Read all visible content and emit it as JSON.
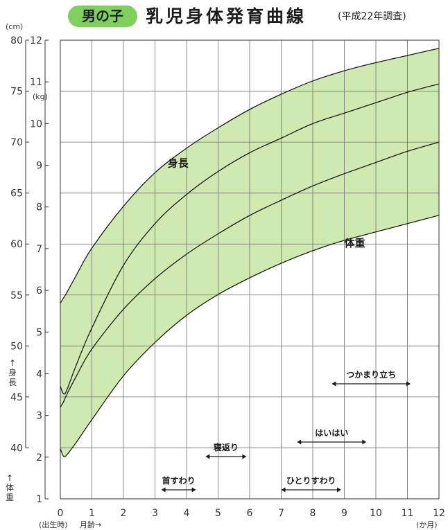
{
  "header": {
    "badge": "男の子",
    "title": "乳児身体発育曲線",
    "survey": "(平成22年調査)"
  },
  "chart_data": {
    "type": "area",
    "title": "乳児身体発育曲線",
    "x": [
      0,
      0.1,
      0.2,
      0.5,
      1,
      2,
      3,
      4,
      5,
      6,
      7,
      8,
      9,
      10,
      11,
      12
    ],
    "xlim": [
      0,
      12
    ],
    "x_ticks": [
      "0",
      "1",
      "2",
      "3",
      "4",
      "5",
      "6",
      "7",
      "8",
      "9",
      "10",
      "11",
      "12"
    ],
    "x_label_left": "(出生時)",
    "x_label": "月齢→",
    "x_unit": "(か月)",
    "y_left": {
      "unit": "(cm)",
      "label": "↑身長",
      "ylim": [
        35,
        80
      ],
      "ticks": [
        "40",
        "45",
        "50",
        "55",
        "60",
        "65",
        "70",
        "75",
        "80"
      ]
    },
    "y_right": {
      "unit": "(kg)",
      "label": "↑体重",
      "ylim": [
        1,
        12
      ],
      "ticks": [
        "1",
        "2",
        "3",
        "4",
        "5",
        "6",
        "7",
        "8",
        "9",
        "10",
        "11",
        "12"
      ]
    },
    "grid": true,
    "band_color": "#cfeab0",
    "series": [
      {
        "name": "身長",
        "axis": "left",
        "upper": [
          54.2,
          54.7,
          55.2,
          56.9,
          59.6,
          63.7,
          67.0,
          69.4,
          71.4,
          73.2,
          74.7,
          76.0,
          77.0,
          77.8,
          78.5,
          79.2
        ],
        "lower": [
          44.0,
          44.5,
          45.2,
          47.0,
          49.7,
          53.6,
          56.6,
          59.0,
          61.0,
          62.8,
          64.3,
          65.7,
          66.9,
          68.0,
          69.1,
          70.0
        ]
      },
      {
        "name": "体重",
        "axis": "right",
        "upper": [
          3.7,
          3.52,
          3.6,
          4.2,
          5.1,
          6.6,
          7.6,
          8.3,
          8.85,
          9.3,
          9.65,
          10.0,
          10.25,
          10.5,
          10.75,
          10.95
        ],
        "lower": [
          2.2,
          2.02,
          2.05,
          2.35,
          2.9,
          3.95,
          4.75,
          5.4,
          5.9,
          6.3,
          6.65,
          6.95,
          7.2,
          7.4,
          7.6,
          7.8
        ]
      }
    ],
    "annotations": [
      {
        "label": "首すわり",
        "range": [
          3.2,
          4.3
        ]
      },
      {
        "label": "寝返り",
        "range": [
          4.6,
          5.9
        ]
      },
      {
        "label": "ひとりすわり",
        "range": [
          7.0,
          8.9
        ]
      },
      {
        "label": "はいはい",
        "range": [
          7.5,
          9.7
        ]
      },
      {
        "label": "つかまり立ち",
        "range": [
          8.6,
          11.1
        ]
      }
    ]
  }
}
